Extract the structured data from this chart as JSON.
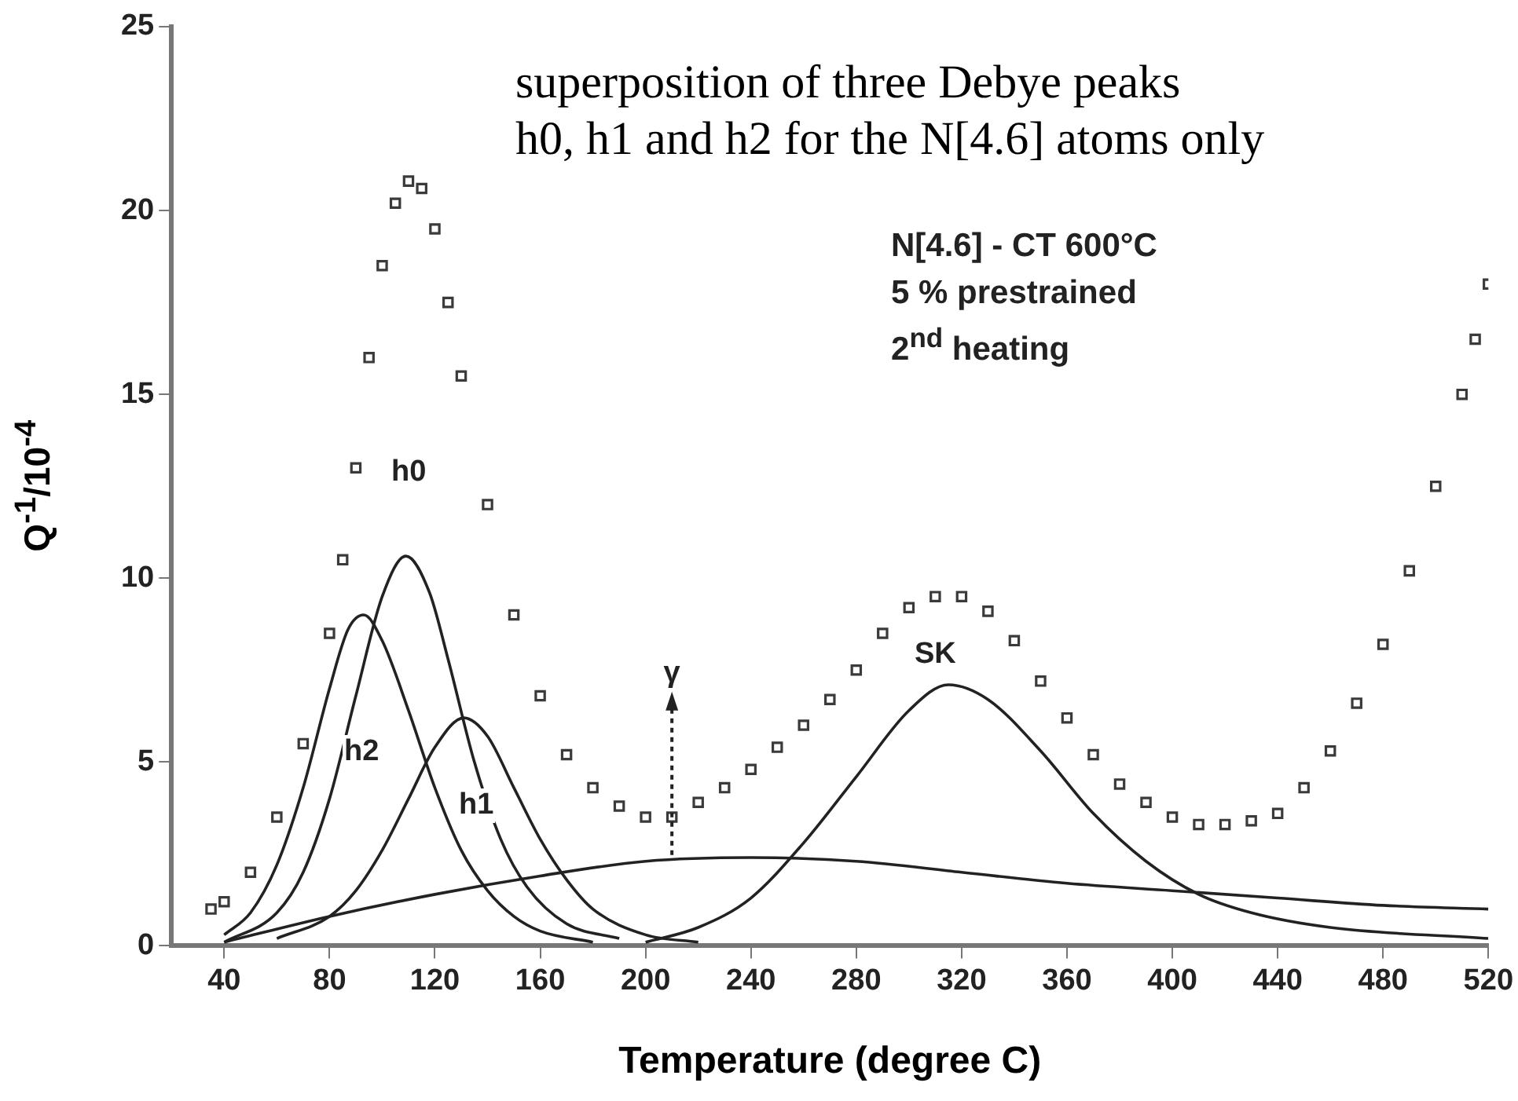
{
  "chart_data": {
    "type": "scatter",
    "xlabel": "Temperature (degree C)",
    "ylabel": "Q$^{-1}$/10$^{-4}$",
    "xlim": [
      20,
      520
    ],
    "xticks": [
      40,
      80,
      120,
      160,
      200,
      240,
      280,
      320,
      360,
      400,
      440,
      480,
      520
    ],
    "ylim": [
      0,
      25
    ],
    "yticks": [
      0,
      5,
      10,
      15,
      20,
      25
    ],
    "grid": false,
    "legend": false,
    "series": [
      {
        "marker": "square",
        "color": "#3a3a3a",
        "x": [
          35,
          40,
          50,
          60,
          70,
          80,
          85,
          90,
          95,
          100,
          105,
          110,
          115,
          120,
          125,
          130,
          140,
          150,
          160,
          170,
          180,
          190,
          200,
          210,
          220,
          230,
          240,
          250,
          260,
          270,
          280,
          290,
          300,
          310,
          320,
          330,
          340,
          350,
          360,
          370,
          380,
          390,
          400,
          410,
          420,
          430,
          440,
          450,
          460,
          470,
          480,
          490,
          500,
          510,
          515,
          520
        ],
        "values": [
          1.0,
          1.2,
          2.0,
          3.5,
          5.5,
          8.5,
          10.5,
          13,
          16,
          18.5,
          20.2,
          20.8,
          20.6,
          19.5,
          17.5,
          15.5,
          12,
          9,
          6.8,
          5.2,
          4.3,
          3.8,
          3.5,
          3.5,
          3.9,
          4.3,
          4.8,
          5.4,
          6.0,
          6.7,
          7.5,
          8.5,
          9.2,
          9.5,
          9.5,
          9.1,
          8.3,
          7.2,
          6.2,
          5.2,
          4.4,
          3.9,
          3.5,
          3.3,
          3.3,
          3.4,
          3.6,
          4.3,
          5.3,
          6.6,
          8.2,
          10.2,
          12.5,
          15.0,
          16.5,
          18
        ]
      },
      {
        "type": "line",
        "color": "#222222",
        "x": [
          40,
          50,
          60,
          70,
          80,
          87,
          93,
          100,
          110,
          120,
          130,
          140,
          150,
          160,
          180
        ],
        "values": [
          0.3,
          0.9,
          2.2,
          4.3,
          7.0,
          8.6,
          9.0,
          8.3,
          6.4,
          4.3,
          2.6,
          1.5,
          0.8,
          0.4,
          0.1
        ]
      },
      {
        "type": "line",
        "color": "#222222",
        "x": [
          40,
          60,
          70,
          80,
          90,
          100,
          109,
          118,
          125,
          135,
          145,
          155,
          170,
          190
        ],
        "values": [
          0.1,
          0.9,
          2.0,
          4.0,
          6.8,
          9.5,
          10.6,
          9.6,
          7.8,
          5.0,
          2.9,
          1.6,
          0.6,
          0.2
        ]
      },
      {
        "type": "line",
        "color": "#222222",
        "x": [
          60,
          80,
          90,
          100,
          110,
          120,
          131,
          140,
          150,
          160,
          170,
          180,
          200,
          220
        ],
        "values": [
          0.2,
          0.8,
          1.5,
          2.6,
          4.0,
          5.4,
          6.2,
          5.7,
          4.3,
          2.9,
          1.8,
          1.0,
          0.3,
          0.1
        ]
      },
      {
        "type": "line",
        "color": "#222222",
        "x": [
          200,
          220,
          240,
          260,
          280,
          300,
          315,
          330,
          350,
          370,
          390,
          410,
          430,
          460,
          520
        ],
        "values": [
          0.1,
          0.5,
          1.3,
          2.8,
          4.6,
          6.4,
          7.1,
          6.7,
          5.3,
          3.6,
          2.3,
          1.4,
          0.9,
          0.5,
          0.2
        ]
      },
      {
        "type": "line",
        "color": "#222222",
        "x": [
          40,
          80,
          120,
          160,
          200,
          240,
          280,
          320,
          360,
          400,
          440,
          480,
          520
        ],
        "values": [
          0.1,
          0.8,
          1.4,
          1.9,
          2.3,
          2.4,
          2.3,
          2.0,
          1.7,
          1.5,
          1.3,
          1.1,
          1.0
        ]
      }
    ],
    "annotations": [
      "h0",
      "h2",
      "h1",
      "SK",
      {
        "text": "γ",
        "x": 210,
        "y": 2.3
      },
      "N[4.6] - CT 600°C",
      "5 % prestrained",
      "2$^{nd}$ heating",
      "superposition of three Debye peaks",
      "h0, h1 and h2 for the N[4.6] atoms only"
    ]
  }
}
